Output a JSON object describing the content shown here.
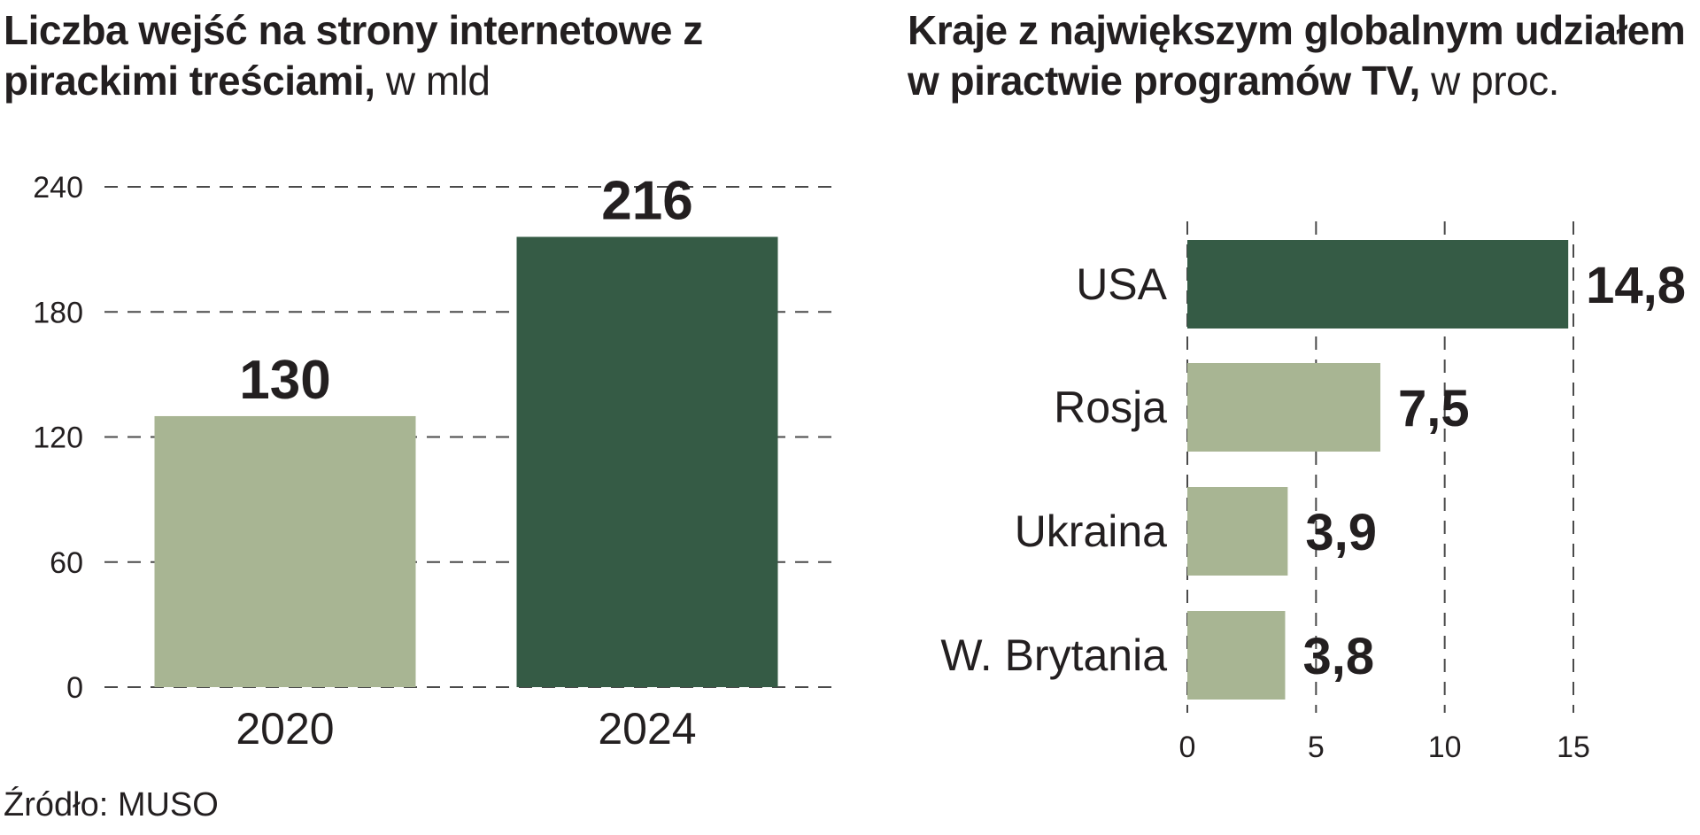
{
  "chart_data": [
    {
      "type": "bar",
      "title_main": "Liczba wejść na strony internetowe z pirackimi treściami,",
      "title_unit": "w mld",
      "categories": [
        "2020",
        "2024"
      ],
      "values": [
        130,
        216
      ],
      "value_labels": [
        "130",
        "216"
      ],
      "yticks": [
        "0",
        "60",
        "120",
        "180",
        "240"
      ],
      "ytick_values": [
        0,
        60,
        120,
        180,
        240
      ],
      "ylim": [
        0,
        240
      ],
      "grid": true,
      "colors": [
        "#a8b593",
        "#355b45"
      ]
    },
    {
      "type": "bar",
      "orientation": "horizontal",
      "title_main": "Kraje z największym globalnym udziałem w piractwie programów TV,",
      "title_unit": "w proc.",
      "categories": [
        "USA",
        "Rosja",
        "Ukraina",
        "W. Brytania"
      ],
      "values": [
        14.8,
        7.5,
        3.9,
        3.8
      ],
      "value_labels": [
        "14,8",
        "7,5",
        "3,9",
        "3,8"
      ],
      "xticks": [
        "0",
        "5",
        "10",
        "15"
      ],
      "xtick_values": [
        0,
        5,
        10,
        15
      ],
      "xlim": [
        0,
        15
      ],
      "grid": true,
      "colors": [
        "#355b45",
        "#a8b593",
        "#a8b593",
        "#a8b593"
      ]
    }
  ],
  "source": "Źródło: MUSO"
}
